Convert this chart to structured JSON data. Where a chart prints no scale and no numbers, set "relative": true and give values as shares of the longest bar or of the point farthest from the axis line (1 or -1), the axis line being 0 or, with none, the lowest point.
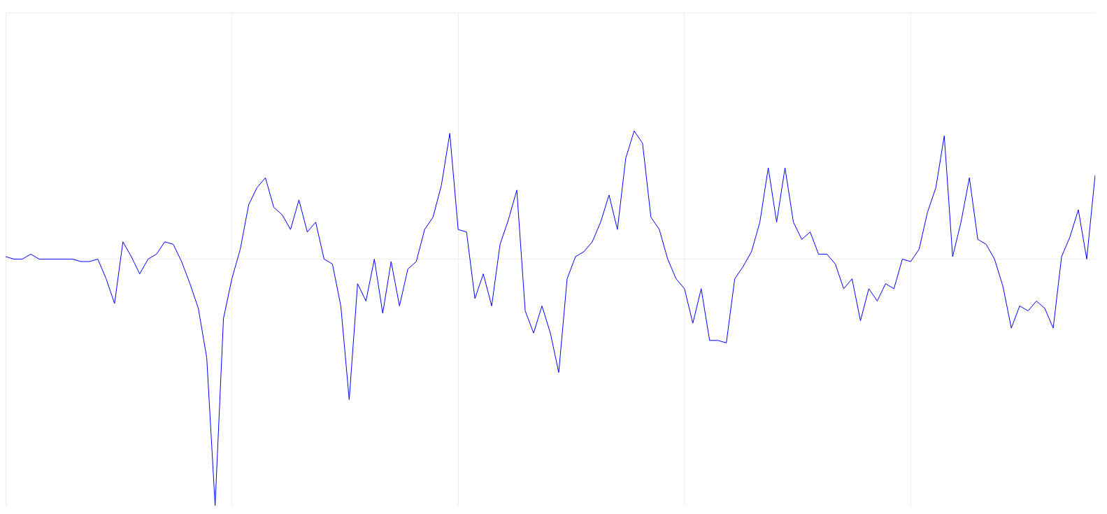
{
  "chart_data": {
    "type": "line",
    "relative": true,
    "grid": true,
    "legend": false,
    "marker": "none",
    "line_style": "solid",
    "categories": [
      null,
      null,
      null,
      null,
      null,
      null,
      null,
      null,
      null,
      null,
      null,
      null,
      null,
      null,
      null,
      null,
      null,
      null,
      null,
      null,
      null,
      null,
      null,
      null,
      null,
      null,
      null,
      null,
      null,
      null,
      null,
      null,
      null,
      null,
      null,
      null,
      null,
      null,
      null,
      null,
      null,
      null,
      null,
      null,
      null,
      null,
      null,
      null,
      null,
      null,
      null,
      null,
      null,
      null,
      null,
      null,
      null,
      null,
      null,
      null,
      null,
      null,
      null,
      null,
      null,
      null,
      null,
      null,
      null,
      null,
      null,
      null,
      null,
      null,
      null,
      null,
      null,
      null,
      null,
      null,
      null,
      null,
      null,
      null,
      null,
      null,
      null,
      null,
      null,
      null,
      null,
      null,
      null,
      null,
      null,
      null,
      null,
      null,
      null,
      null,
      null,
      null,
      null,
      null,
      null,
      null,
      null,
      null,
      null,
      null,
      null,
      null,
      null,
      null,
      null,
      null,
      null,
      null,
      null,
      null,
      null,
      null,
      null,
      null,
      null,
      null,
      null,
      null,
      null,
      null,
      null
    ],
    "series": [
      {
        "color": "#0000ff",
        "values": [
          0.01,
          0,
          0,
          0.02,
          0,
          0,
          0,
          0,
          0,
          -0.01,
          -0.01,
          0,
          -0.08,
          -0.18,
          0.07,
          0.01,
          -0.06,
          0,
          0.02,
          0.07,
          0.06,
          -0.01,
          -0.1,
          -0.2,
          -0.4,
          -1,
          -0.24,
          -0.08,
          0.04,
          0.22,
          0.29,
          0.33,
          0.21,
          0.18,
          0.12,
          0.24,
          0.11,
          0.15,
          0,
          -0.02,
          -0.19,
          -0.57,
          -0.1,
          -0.17,
          0,
          -0.22,
          -0.01,
          -0.19,
          -0.04,
          -0.01,
          0.12,
          0.17,
          0.3,
          0.51,
          0.12,
          0.11,
          -0.16,
          -0.06,
          -0.19,
          0.06,
          0.16,
          0.28,
          -0.21,
          -0.3,
          -0.19,
          -0.3,
          -0.46,
          -0.08,
          0.01,
          0.03,
          0.07,
          0.15,
          0.26,
          0.12,
          0.41,
          0.52,
          0.47,
          0.17,
          0.12,
          0,
          -0.08,
          -0.12,
          -0.26,
          -0.12,
          -0.33,
          -0.33,
          -0.34,
          -0.08,
          -0.03,
          0.03,
          0.15,
          0.37,
          0.15,
          0.37,
          0.15,
          0.08,
          0.11,
          0.02,
          0.02,
          -0.02,
          -0.12,
          -0.08,
          -0.25,
          -0.12,
          -0.17,
          -0.1,
          -0.12,
          0,
          -0.01,
          0.04,
          0.19,
          0.29,
          0.5,
          0.01,
          0.15,
          0.33,
          0.08,
          0.06,
          0,
          -0.11,
          -0.28,
          -0.19,
          -0.21,
          -0.17,
          -0.2,
          -0.28,
          0.01,
          0.09,
          0.2,
          0,
          0.34
        ]
      }
    ]
  }
}
